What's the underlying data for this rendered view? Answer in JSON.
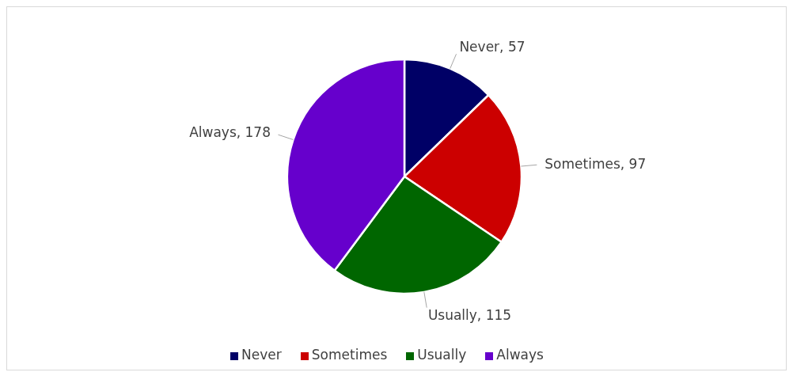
{
  "chart_data": {
    "type": "pie",
    "categories": [
      "Never",
      "Sometimes",
      "Usually",
      "Always"
    ],
    "values": [
      57,
      97,
      115,
      178
    ],
    "value_labels": [
      "Never, 57",
      "Sometimes, 97",
      "Usually, 115",
      "Always, 178"
    ],
    "colors": [
      "#000066",
      "#cc0000",
      "#006600",
      "#6600cc"
    ],
    "legend": "bottom"
  }
}
